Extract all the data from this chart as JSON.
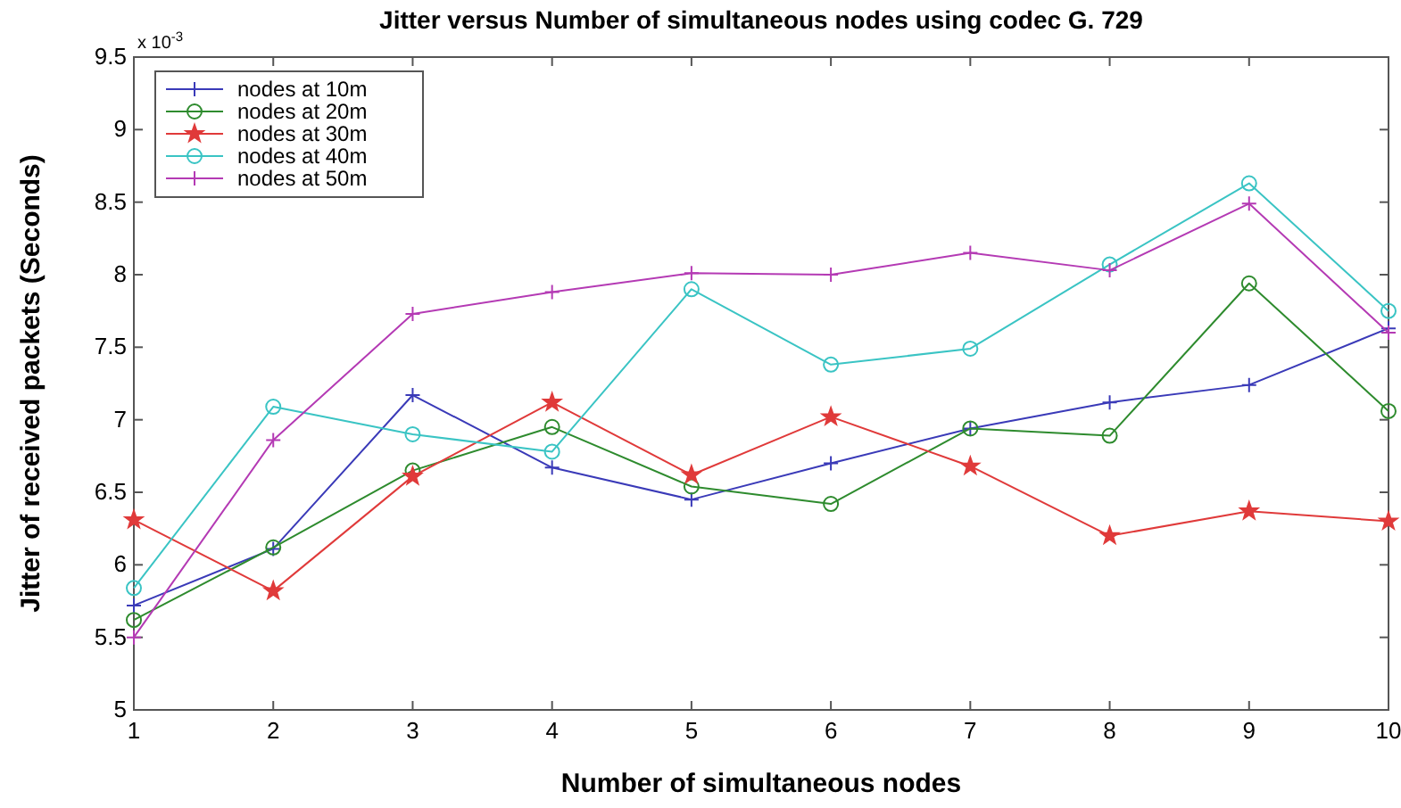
{
  "chart_data": {
    "type": "line",
    "title": "Jitter versus Number of simultaneous nodes using codec G. 729",
    "xlabel": "Number of simultaneous nodes",
    "ylabel": "Jitter of received packets (Seconds)",
    "annotations": [
      "x 10$^{-3}$"
    ],
    "x": [
      1,
      2,
      3,
      4,
      5,
      6,
      7,
      8,
      9,
      10
    ],
    "xlim": [
      1,
      10
    ],
    "xticks": [
      1,
      2,
      3,
      4,
      5,
      6,
      7,
      8,
      9,
      10
    ],
    "ylim": [
      5,
      9.5
    ],
    "yticks": [
      5,
      5.5,
      6,
      6.5,
      7,
      7.5,
      8,
      8.5,
      9,
      9.5
    ],
    "grid": false,
    "legend": "top left",
    "line_style": "solid",
    "series": [
      {
        "name": "nodes at 10m",
        "color": "#3a3ab8",
        "marker": "cross",
        "values": [
          5.72,
          6.11,
          7.17,
          6.67,
          6.45,
          6.7,
          6.94,
          7.12,
          7.24,
          7.63
        ]
      },
      {
        "name": "nodes at 20m",
        "color": "#2e8b2e",
        "marker": "circle",
        "values": [
          5.62,
          6.12,
          6.65,
          6.95,
          6.54,
          6.42,
          6.94,
          6.89,
          7.94,
          7.06
        ]
      },
      {
        "name": "nodes at 30m",
        "color": "#e03a3a",
        "marker": "star",
        "values": [
          6.31,
          5.82,
          6.61,
          7.12,
          6.62,
          7.02,
          6.68,
          6.2,
          6.37,
          6.3
        ]
      },
      {
        "name": "nodes at 40m",
        "color": "#3ac4c4",
        "marker": "circle",
        "values": [
          5.84,
          7.09,
          6.9,
          6.78,
          7.9,
          7.38,
          7.49,
          8.07,
          8.63,
          7.75
        ]
      },
      {
        "name": "nodes at 50m",
        "color": "#b43ab4",
        "marker": "cross",
        "values": [
          5.5,
          6.86,
          7.73,
          7.88,
          8.01,
          8.0,
          8.15,
          8.03,
          8.49,
          7.6
        ]
      }
    ]
  }
}
